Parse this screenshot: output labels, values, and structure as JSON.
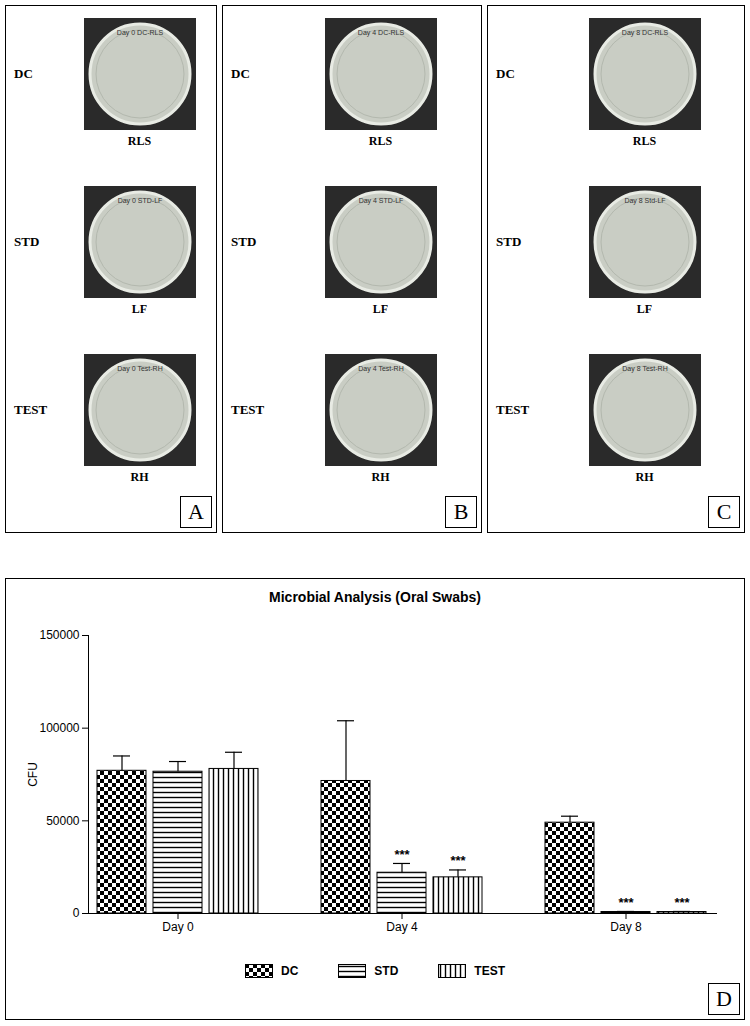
{
  "photo_panels": [
    {
      "letter": "A",
      "rows": [
        {
          "label": "DC",
          "plate_label": "RLS",
          "plate_text": "Day 0 DC-RLS"
        },
        {
          "label": "STD",
          "plate_label": "LF",
          "plate_text": "Day 0 STD-LF"
        },
        {
          "label": "TEST",
          "plate_label": "RH",
          "plate_text": "Day 0 Test-RH"
        }
      ]
    },
    {
      "letter": "B",
      "rows": [
        {
          "label": "DC",
          "plate_label": "RLS",
          "plate_text": "Day 4 DC-RLS"
        },
        {
          "label": "STD",
          "plate_label": "LF",
          "plate_text": "Day 4 STD-LF"
        },
        {
          "label": "TEST",
          "plate_label": "RH",
          "plate_text": "Day 4 Test-RH"
        }
      ]
    },
    {
      "letter": "C",
      "rows": [
        {
          "label": "DC",
          "plate_label": "RLS",
          "plate_text": "Day 8 DC-RLS"
        },
        {
          "label": "STD",
          "plate_label": "LF",
          "plate_text": "Day 8 Std-LF"
        },
        {
          "label": "TEST",
          "plate_label": "RH",
          "plate_text": "Day 8 Test-RH"
        }
      ]
    }
  ],
  "chart_data": {
    "type": "bar",
    "title": "Microbial Analysis (Oral Swabs)",
    "panel": "D",
    "ylabel": "CFU",
    "categories": [
      "Day 0",
      "Day 4",
      "Day 8"
    ],
    "series": [
      {
        "name": "DC",
        "color": "#000000",
        "values": [
          77000,
          71500,
          49000
        ],
        "errors": [
          8000,
          32500,
          3500
        ]
      },
      {
        "name": "STD",
        "color": "#000000",
        "values": [
          76500,
          22000,
          800
        ],
        "errors": [
          5500,
          5000,
          300
        ],
        "significance": [
          null,
          "***",
          "***"
        ]
      },
      {
        "name": "TEST",
        "color": "#000000",
        "values": [
          78000,
          19500,
          800
        ],
        "errors": [
          9000,
          4000,
          300
        ],
        "significance": [
          null,
          "***",
          "***"
        ]
      }
    ],
    "ylim": [
      0,
      150000
    ],
    "yticks": [
      0,
      50000,
      100000,
      150000
    ],
    "legend": "bottom",
    "grid": false
  }
}
